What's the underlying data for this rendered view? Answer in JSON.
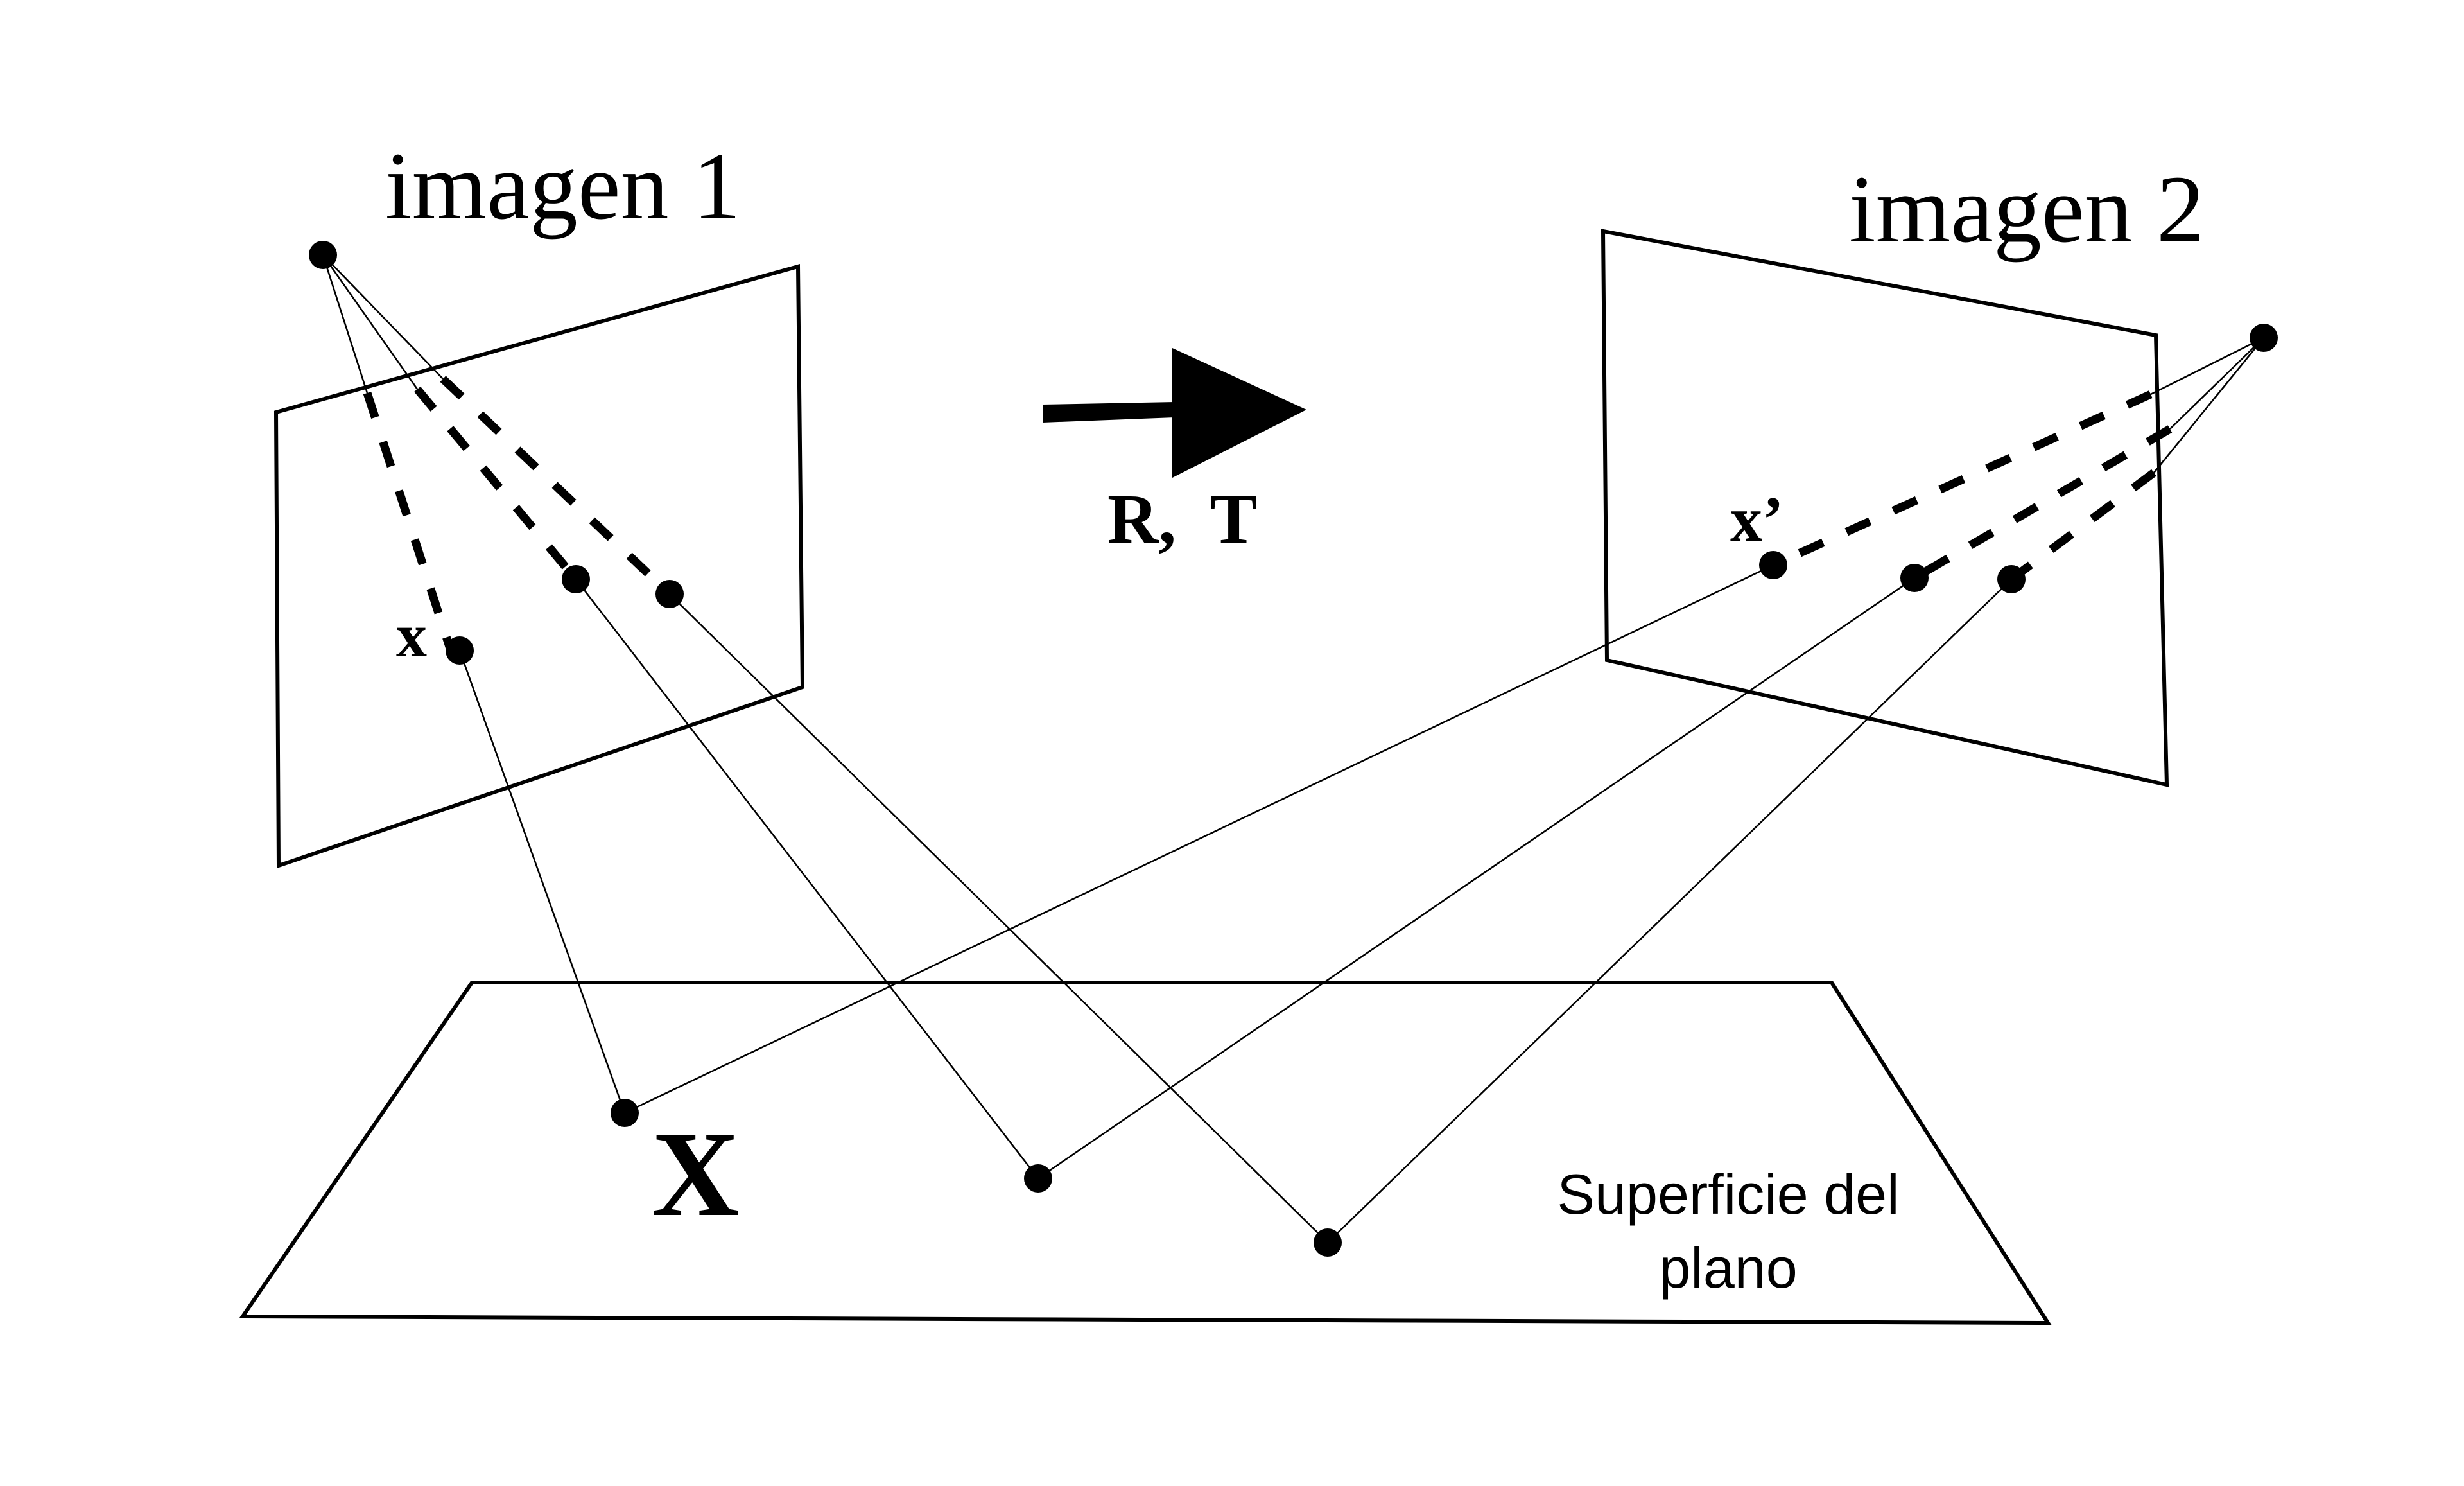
{
  "labels": {
    "image1_title": "imagen 1",
    "image2_title": "imagen 2",
    "transform": "R,  T",
    "point_x": "x",
    "point_x_prime": "x’",
    "world_point": "X",
    "plane_line1": "Superficie del",
    "plane_line2": "plano"
  },
  "colors": {
    "ink": "#000000",
    "background": "#ffffff"
  }
}
